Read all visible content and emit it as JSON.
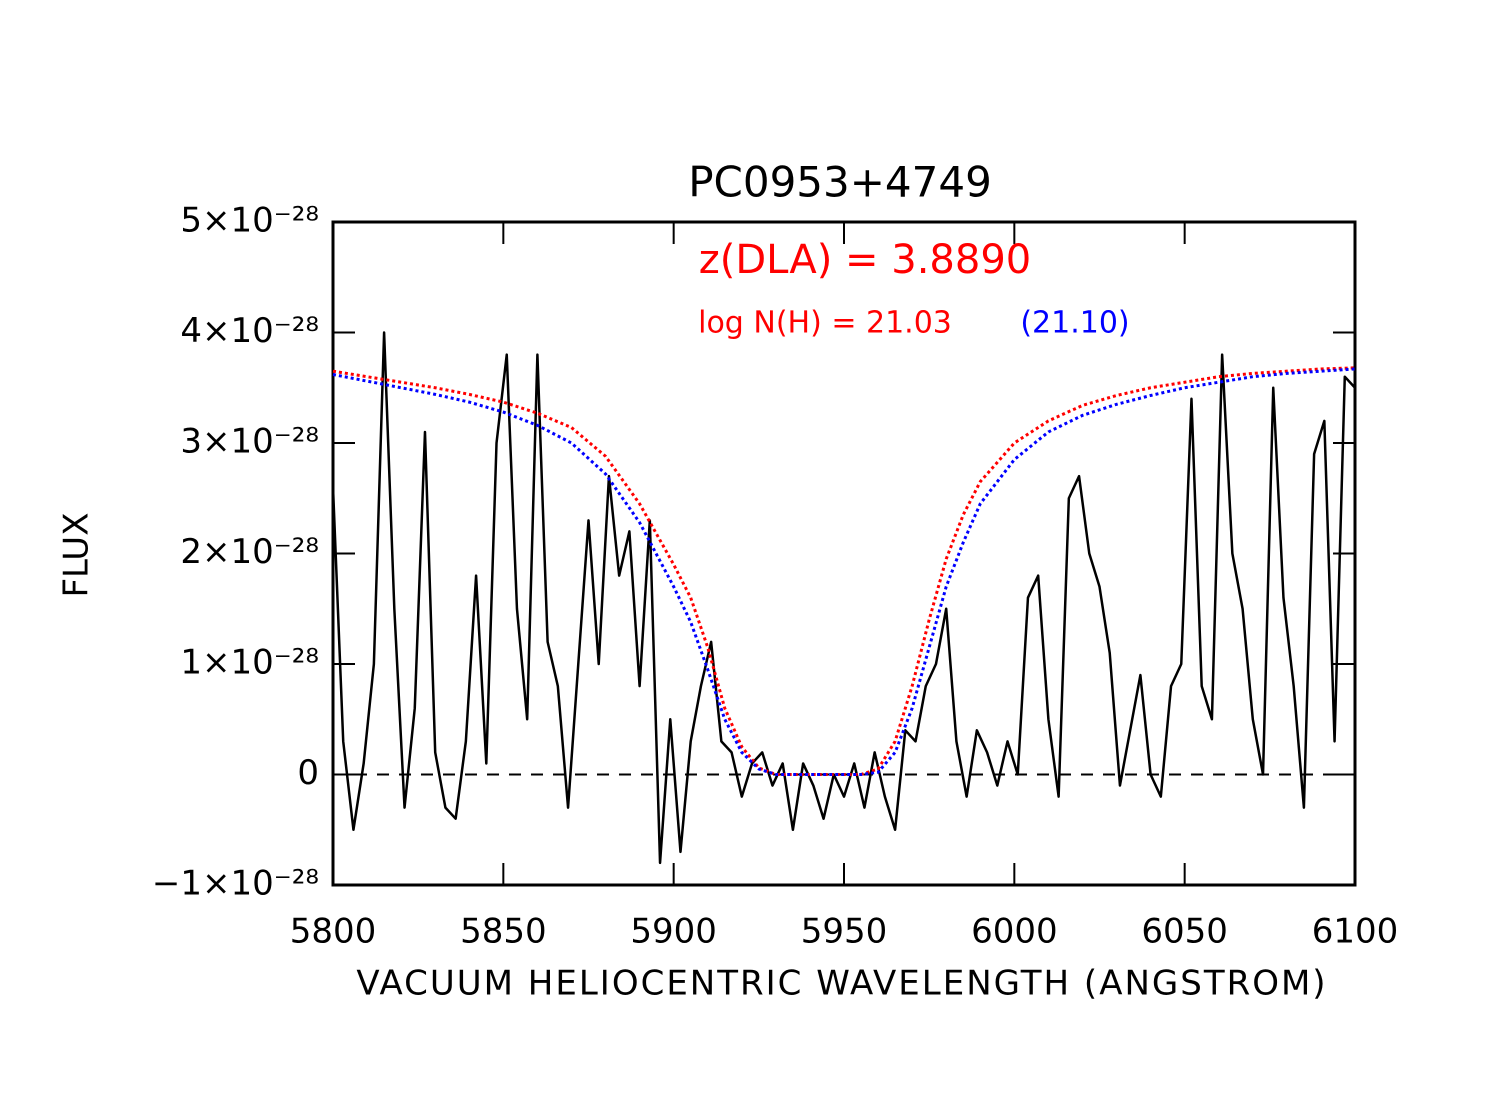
{
  "chart_data": {
    "type": "line",
    "title": "PC0953+4749",
    "x_label": "VACUUM HELIOCENTRIC WAVELENGTH (ANGSTROM)",
    "y_label": "FLUX",
    "xlim": [
      5800,
      6100
    ],
    "xticks": [
      5800,
      5850,
      5900,
      5950,
      6000,
      6050,
      6100
    ],
    "ylim": [
      -1e-28,
      5e-28
    ],
    "yticks": [
      {
        "value": -1e-28,
        "label": "−1×10⁻²⁸"
      },
      0,
      {
        "value": 1e-28,
        "label": "1×10⁻²⁸"
      },
      {
        "value": 2e-28,
        "label": "2×10⁻²⁸"
      },
      {
        "value": 3e-28,
        "label": "3×10⁻²⁸"
      },
      {
        "value": 4e-28,
        "label": "4×10⁻²⁸"
      },
      {
        "value": 5e-28,
        "label": "5×10⁻²⁸"
      }
    ],
    "zero_line": true,
    "annotations": [
      {
        "text": "z(DLA) = 3.8890",
        "color": "#ff0000"
      },
      {
        "text": "log N(H) = 21.03",
        "color": "#ff0000"
      },
      {
        "text": "(21.10)",
        "color": "#0000ff"
      }
    ],
    "series": [
      {
        "color": "#000000",
        "dash": "solid",
        "x": [
          5800,
          5803,
          5806,
          5809,
          5812,
          5815,
          5818,
          5821,
          5824,
          5827,
          5830,
          5833,
          5836,
          5839,
          5842,
          5845,
          5848,
          5851,
          5854,
          5857,
          5860,
          5863,
          5866,
          5869,
          5872,
          5875,
          5878,
          5881,
          5884,
          5887,
          5890,
          5893,
          5896,
          5899,
          5902,
          5905,
          5908,
          5911,
          5914,
          5917,
          5920,
          5923,
          5926,
          5929,
          5932,
          5935,
          5938,
          5941,
          5944,
          5947,
          5950,
          5953,
          5956,
          5959,
          5962,
          5965,
          5968,
          5971,
          5974,
          5977,
          5980,
          5983,
          5986,
          5989,
          5992,
          5995,
          5998,
          6001,
          6004,
          6007,
          6010,
          6013,
          6016,
          6019,
          6022,
          6025,
          6028,
          6031,
          6034,
          6037,
          6040,
          6043,
          6046,
          6049,
          6052,
          6055,
          6058,
          6061,
          6064,
          6067,
          6070,
          6073,
          6076,
          6079,
          6082,
          6085,
          6088,
          6091,
          6094,
          6097,
          6100
        ],
        "values": [
          2.6e-28,
          3e-29,
          -5e-29,
          1e-29,
          1e-28,
          4e-28,
          1.5e-28,
          -3e-29,
          6e-29,
          3.1e-28,
          2e-29,
          -3e-29,
          -4e-29,
          3e-29,
          1.8e-28,
          1e-29,
          3e-28,
          3.8e-28,
          1.5e-28,
          5e-29,
          3.8e-28,
          1.2e-28,
          8e-29,
          -3e-29,
          1e-28,
          2.3e-28,
          1e-28,
          2.7e-28,
          1.8e-28,
          2.2e-28,
          8e-29,
          2.3e-28,
          -8e-29,
          5e-29,
          -7e-29,
          3e-29,
          8e-29,
          1.2e-28,
          3e-29,
          2e-29,
          -2e-29,
          1e-29,
          2e-29,
          -1e-29,
          1e-29,
          -5e-29,
          1e-29,
          -1e-29,
          -4e-29,
          0,
          -2e-29,
          1e-29,
          -3e-29,
          2e-29,
          -2e-29,
          -5e-29,
          4e-29,
          3e-29,
          8e-29,
          1e-28,
          1.5e-28,
          3e-29,
          -2e-29,
          4e-29,
          2e-29,
          -1e-29,
          3e-29,
          0,
          1.6e-28,
          1.8e-28,
          5e-29,
          -2e-29,
          2.5e-28,
          2.7e-28,
          2e-28,
          1.7e-28,
          1.1e-28,
          -1e-29,
          4e-29,
          9e-29,
          0,
          -2e-29,
          8e-29,
          1e-28,
          3.4e-28,
          8e-29,
          5e-29,
          3.8e-28,
          2e-28,
          1.5e-28,
          5e-29,
          0,
          3.5e-28,
          1.6e-28,
          8e-29,
          -3e-29,
          2.9e-28,
          3.2e-28,
          3e-29,
          3.6e-28,
          3.5e-28
        ]
      },
      {
        "color": "#ff0000",
        "dash": "dotted",
        "x": [
          5800,
          5810,
          5820,
          5830,
          5840,
          5850,
          5860,
          5870,
          5880,
          5890,
          5900,
          5905,
          5910,
          5915,
          5920,
          5925,
          5930,
          5940,
          5950,
          5955,
          5960,
          5965,
          5970,
          5975,
          5980,
          5985,
          5990,
          6000,
          6010,
          6020,
          6030,
          6040,
          6050,
          6060,
          6070,
          6080,
          6090,
          6100
        ],
        "values": [
          3.65e-28,
          3.6e-28,
          3.55e-28,
          3.5e-28,
          3.44e-28,
          3.37e-28,
          3.27e-28,
          3.14e-28,
          2.88e-28,
          2.45e-28,
          1.9e-28,
          1.6e-28,
          1.15e-28,
          6e-29,
          2.5e-29,
          6e-30,
          0,
          0,
          0,
          0,
          5e-30,
          3e-29,
          8e-29,
          1.4e-28,
          1.95e-28,
          2.35e-28,
          2.65e-28,
          3e-28,
          3.2e-28,
          3.34e-28,
          3.43e-28,
          3.5e-28,
          3.55e-28,
          3.6e-28,
          3.63e-28,
          3.65e-28,
          3.67e-28,
          3.68e-28
        ]
      },
      {
        "color": "#0000ff",
        "dash": "dotted",
        "x": [
          5800,
          5810,
          5820,
          5830,
          5840,
          5850,
          5860,
          5870,
          5880,
          5890,
          5900,
          5905,
          5910,
          5915,
          5920,
          5925,
          5930,
          5940,
          5950,
          5955,
          5960,
          5965,
          5970,
          5975,
          5980,
          5985,
          5990,
          6000,
          6010,
          6020,
          6030,
          6040,
          6050,
          6060,
          6070,
          6080,
          6090,
          6100
        ],
        "values": [
          3.62e-28,
          3.56e-28,
          3.5e-28,
          3.44e-28,
          3.37e-28,
          3.28e-28,
          3.16e-28,
          3e-28,
          2.72e-28,
          2.28e-28,
          1.7e-28,
          1.38e-28,
          9.5e-29,
          5e-29,
          2e-29,
          5e-30,
          0,
          0,
          0,
          0,
          2e-30,
          2e-29,
          6e-29,
          1.15e-28,
          1.7e-28,
          2.1e-28,
          2.45e-28,
          2.85e-28,
          3.1e-28,
          3.25e-28,
          3.35e-28,
          3.43e-28,
          3.5e-28,
          3.55e-28,
          3.6e-28,
          3.63e-28,
          3.65e-28,
          3.67e-28
        ]
      }
    ]
  }
}
